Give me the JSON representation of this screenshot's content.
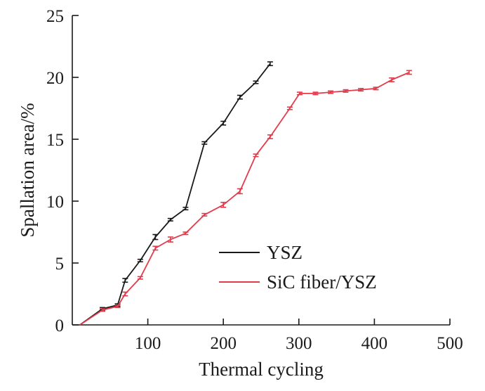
{
  "chart_data": {
    "type": "line",
    "title": "",
    "xlabel": "Thermal cycling",
    "ylabel": "Spallation area/%",
    "xlim": [
      0,
      500
    ],
    "ylim": [
      0,
      25
    ],
    "xticks": [
      100,
      200,
      300,
      400,
      500
    ],
    "yticks": [
      0,
      5,
      10,
      15,
      20,
      25
    ],
    "grid": false,
    "legend": "center-bottom",
    "series": [
      {
        "name": "YSZ",
        "color": "#1a1a1a",
        "x": [
          10,
          40,
          60,
          70,
          90,
          110,
          130,
          150,
          175,
          200,
          222,
          243,
          262
        ],
        "y": [
          0.0,
          1.3,
          1.6,
          3.6,
          5.2,
          7.1,
          8.5,
          9.4,
          14.7,
          16.3,
          18.4,
          19.6,
          21.1
        ],
        "err": [
          0.0,
          0.1,
          0.1,
          0.15,
          0.1,
          0.2,
          0.1,
          0.1,
          0.1,
          0.15,
          0.15,
          0.1,
          0.15
        ]
      },
      {
        "name": "SiC fiber/YSZ",
        "color": "#e23c4c",
        "x": [
          10,
          40,
          60,
          70,
          90,
          110,
          130,
          150,
          175,
          200,
          222,
          243,
          262,
          288,
          301,
          322,
          342,
          362,
          382,
          402,
          423,
          446
        ],
        "y": [
          0.0,
          1.2,
          1.5,
          2.5,
          3.8,
          6.2,
          6.9,
          7.4,
          8.9,
          9.7,
          10.8,
          13.7,
          15.2,
          17.5,
          18.7,
          18.7,
          18.8,
          18.9,
          19.0,
          19.1,
          19.8,
          20.4
        ],
        "err": [
          0.0,
          0.1,
          0.1,
          0.15,
          0.1,
          0.15,
          0.2,
          0.1,
          0.1,
          0.2,
          0.2,
          0.1,
          0.15,
          0.1,
          0.1,
          0.1,
          0.1,
          0.1,
          0.1,
          0.1,
          0.15,
          0.15
        ]
      }
    ]
  }
}
